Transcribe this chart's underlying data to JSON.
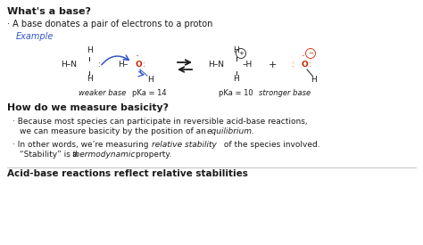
{
  "bg_color": "#ffffff",
  "title": "What's a base?",
  "bullet1": "· A base donates a pair of electrons to a proton",
  "example_label": "Example",
  "label_weaker": "weaker base",
  "label_pka14": "pKa = 14",
  "label_pka10": "pKa = 10",
  "label_stronger": "stronger base",
  "section2": "How do we measure basicity?",
  "footer": "Acid-base reactions reflect relative stabilities",
  "font_color": "#1a1a1a",
  "blue_color": "#3355cc",
  "red_color": "#cc2200",
  "figsize": [
    4.74,
    2.75
  ],
  "dpi": 100
}
